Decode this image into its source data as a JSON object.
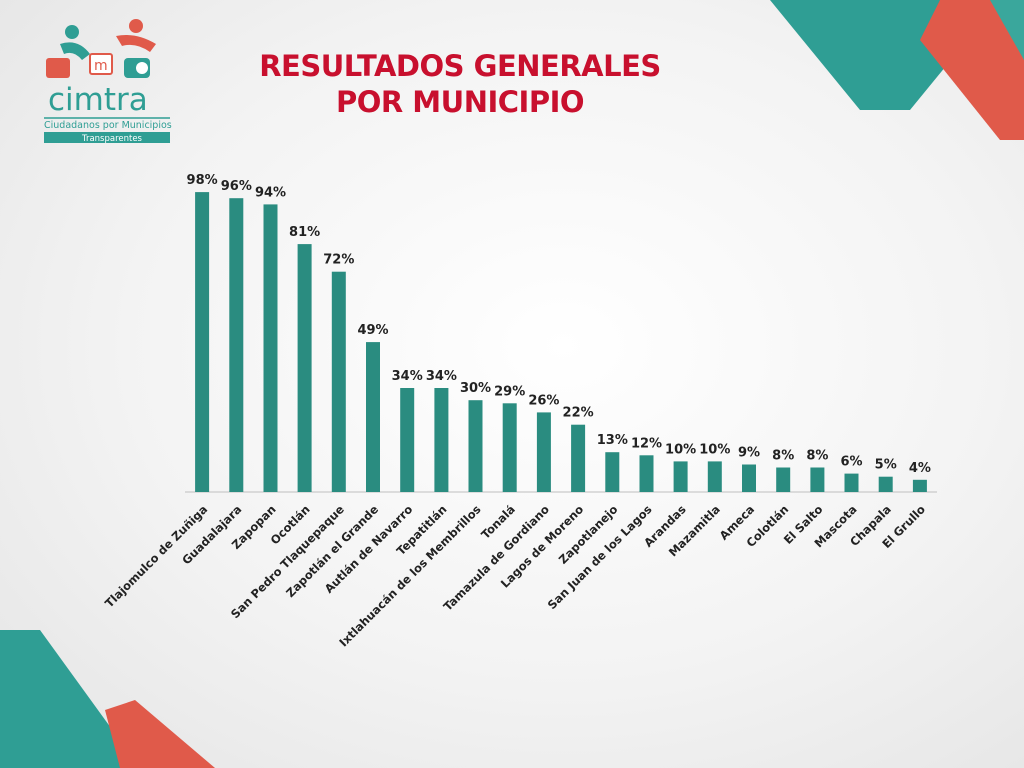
{
  "slide": {
    "title_line1": "RESULTADOS GENERALES",
    "title_line2": "POR MUNICIPIO"
  },
  "logo": {
    "name": "cimtra",
    "tagline_line1": "Ciudadanos por Municipios",
    "tagline_line2": "Transparentes",
    "letter": "m"
  },
  "colors": {
    "bar": "#2a8c80",
    "title": "#c8102e",
    "teal_accent": "#2f9e94",
    "red_accent": "#e05a4a",
    "axis": "#bfbfbf",
    "label": "#222222"
  },
  "chart_data": {
    "type": "bar",
    "title": "",
    "xlabel": "",
    "ylabel": "",
    "ylim": [
      0,
      100
    ],
    "grid": false,
    "legend": "none",
    "categories": [
      "Tlajomulco de Zuñiga",
      "Guadalajara",
      "Zapopan",
      "Ocotlán",
      "San Pedro Tlaquepaque",
      "Zapotlán el Grande",
      "Autlán de Navarro",
      "Tepatitlán",
      "Ixtlahuacán de los Membrillos",
      "Tonalá",
      "Tamazula de Gordiano",
      "Lagos de Moreno",
      "Zapotlanejo",
      "San Juan de los Lagos",
      "Arandas",
      "Mazamitla",
      "Ameca",
      "Colotlán",
      "El Salto",
      "Mascota",
      "Chapala",
      "El Grullo"
    ],
    "values": [
      98,
      96,
      94,
      81,
      72,
      49,
      34,
      34,
      30,
      29,
      26,
      22,
      13,
      12,
      10,
      10,
      9,
      8,
      8,
      6,
      5,
      4
    ],
    "value_labels": [
      "98%",
      "96%",
      "94%",
      "81%",
      "72%",
      "49%",
      "34%",
      "34%",
      "30%",
      "29%",
      "26%",
      "22%",
      "13%",
      "12%",
      "10%",
      "10%",
      "9%",
      "8%",
      "8%",
      "6%",
      "5%",
      "4%"
    ]
  }
}
